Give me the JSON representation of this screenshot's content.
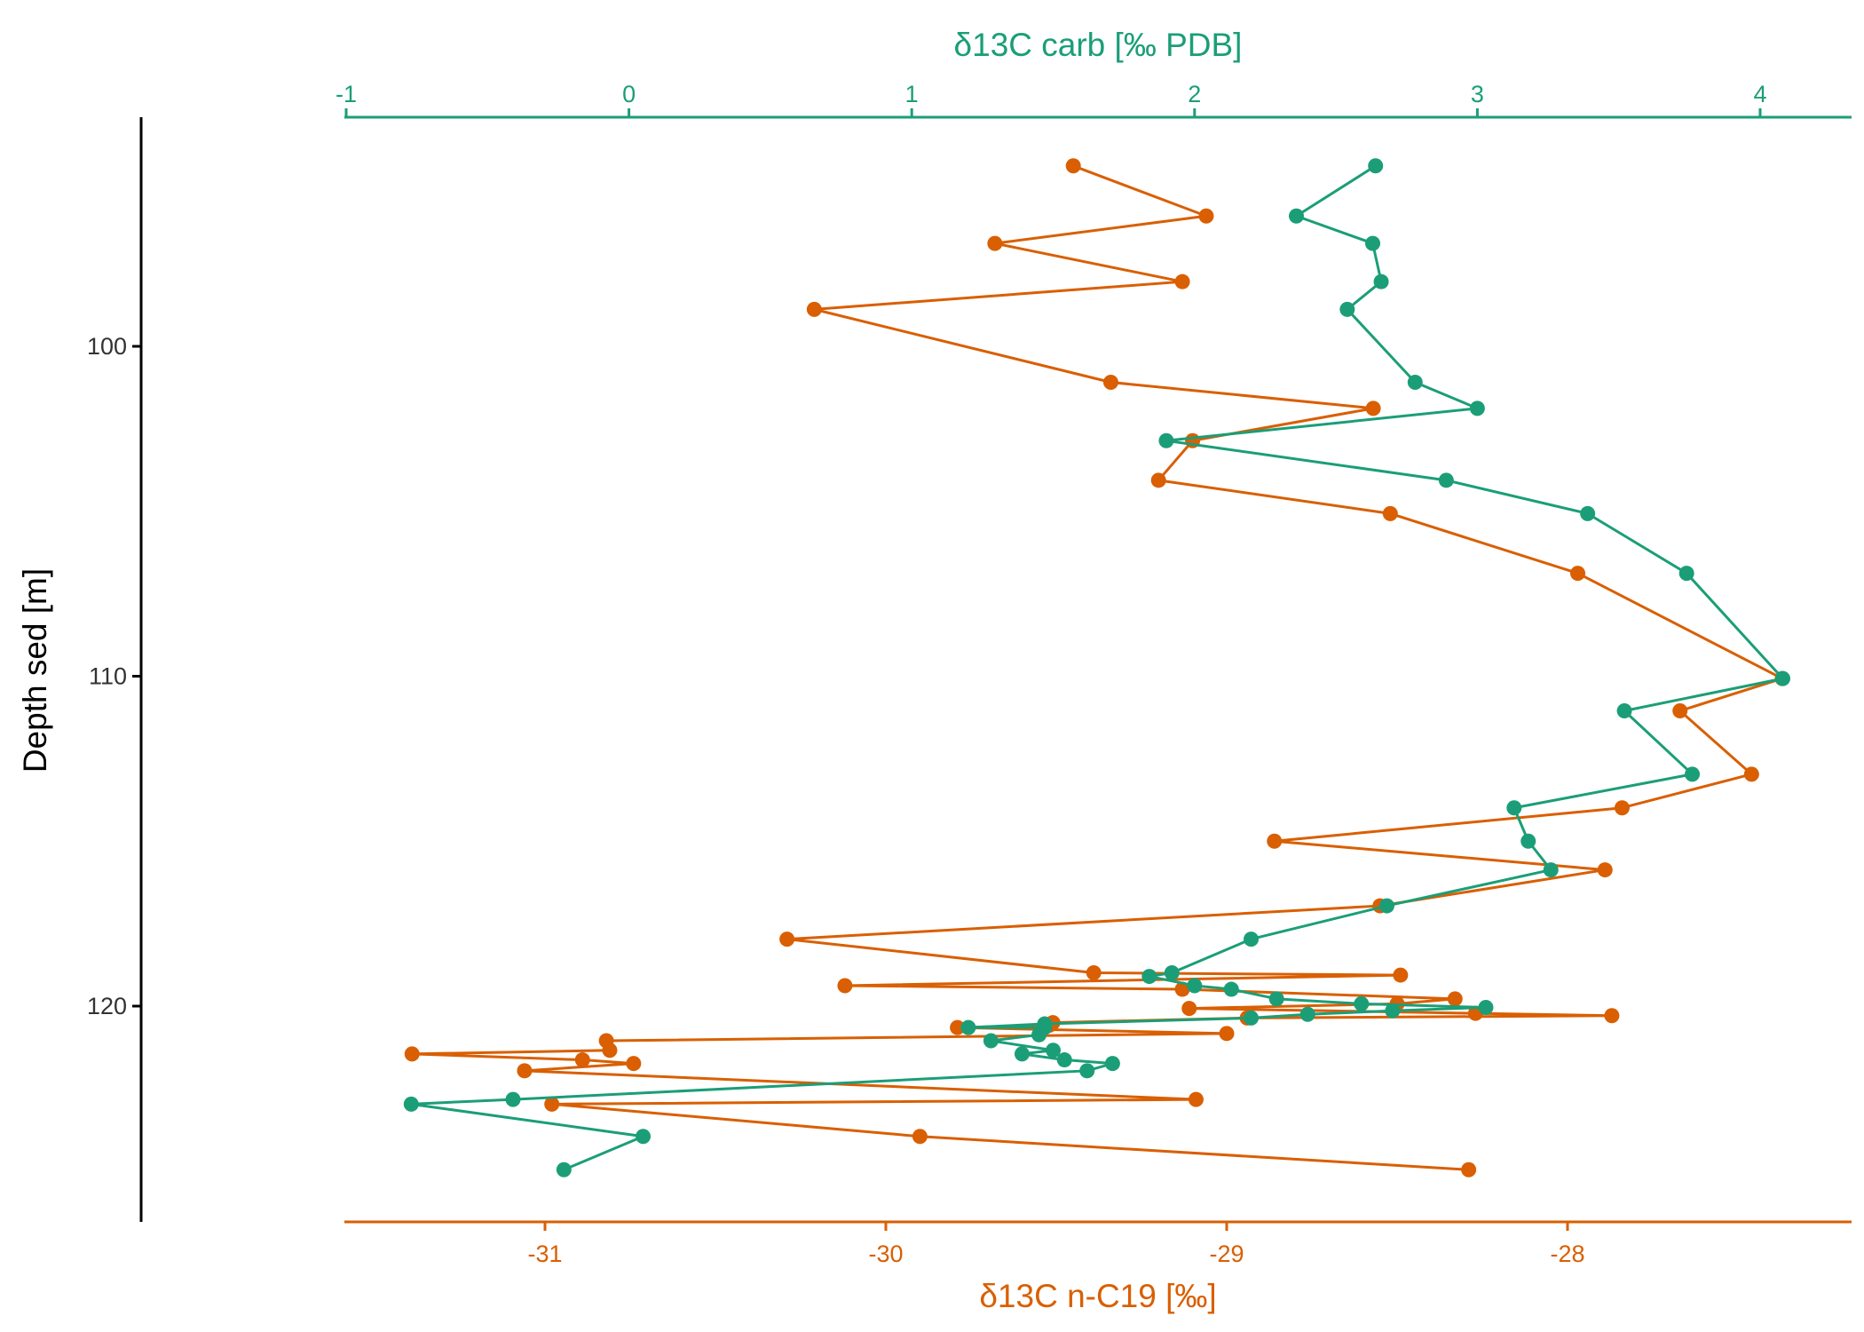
{
  "chart_data": {
    "type": "line",
    "colors": {
      "carb": "#1b9e77",
      "nc19": "#d95f02",
      "axis": "#000000",
      "tick_text": "#333333"
    },
    "ylabel": "Depth sed [m]",
    "yticks": [
      100,
      110,
      120
    ],
    "ylim": [
      93.1,
      126.6
    ],
    "y_reversed": true,
    "grid": false,
    "x_top": {
      "label": "δ13C carb [‰ PDB]",
      "ticks": [
        -1,
        0,
        1,
        2,
        3,
        4
      ],
      "xlim": [
        -1.01,
        4.32
      ]
    },
    "x_bottom": {
      "label": "δ13C n-C19 [‰]",
      "ticks": [
        -31,
        -30,
        -29,
        -28
      ],
      "xlim": [
        -31.6,
        -27.2
      ]
    },
    "series": [
      {
        "key": "nc19",
        "axis": "bottom",
        "color": "#d95f02",
        "points": [
          [
            -29.45,
            94.53
          ],
          [
            -29.06,
            96.05
          ],
          [
            -29.68,
            96.88
          ],
          [
            -29.13,
            98.04
          ],
          [
            -30.21,
            98.88
          ],
          [
            -29.34,
            101.09
          ],
          [
            -28.57,
            101.88
          ],
          [
            -29.1,
            102.86
          ],
          [
            -29.2,
            104.06
          ],
          [
            -28.52,
            105.07
          ],
          [
            -27.97,
            106.88
          ],
          [
            -27.37,
            110.07
          ],
          [
            -27.67,
            111.05
          ],
          [
            -27.46,
            112.97
          ],
          [
            -27.84,
            113.99
          ],
          [
            -28.86,
            115.0
          ],
          [
            -27.89,
            115.87
          ],
          [
            -28.55,
            116.96
          ],
          [
            -30.29,
            117.97
          ],
          [
            -29.39,
            118.99
          ],
          [
            -28.49,
            119.06
          ],
          [
            -30.12,
            119.38
          ],
          [
            -29.13,
            119.49
          ],
          [
            -28.33,
            119.78
          ],
          [
            -28.5,
            119.93
          ],
          [
            -29.11,
            120.07
          ],
          [
            -28.27,
            120.22
          ],
          [
            -27.87,
            120.29
          ],
          [
            -28.94,
            120.36
          ],
          [
            -29.51,
            120.5
          ],
          [
            -29.52,
            120.58
          ],
          [
            -29.79,
            120.65
          ],
          [
            -29.0,
            120.83
          ],
          [
            -30.82,
            121.05
          ],
          [
            -30.81,
            121.34
          ],
          [
            -31.39,
            121.45
          ],
          [
            -30.89,
            121.63
          ],
          [
            -30.74,
            121.74
          ],
          [
            -31.06,
            121.96
          ],
          [
            -29.09,
            122.83
          ],
          [
            -30.98,
            122.97
          ],
          [
            -29.9,
            123.95
          ],
          [
            -28.29,
            124.96
          ]
        ]
      },
      {
        "key": "carb",
        "axis": "top",
        "color": "#1b9e77",
        "points": [
          [
            2.64,
            94.53
          ],
          [
            2.36,
            96.05
          ],
          [
            2.63,
            96.88
          ],
          [
            2.66,
            98.04
          ],
          [
            2.54,
            98.88
          ],
          [
            2.78,
            101.09
          ],
          [
            3.0,
            101.88
          ],
          [
            1.9,
            102.86
          ],
          [
            2.89,
            104.06
          ],
          [
            3.39,
            105.07
          ],
          [
            3.74,
            106.88
          ],
          [
            4.08,
            110.07
          ],
          [
            3.52,
            111.05
          ],
          [
            3.76,
            112.97
          ],
          [
            3.13,
            113.99
          ],
          [
            3.18,
            115.0
          ],
          [
            3.26,
            115.87
          ],
          [
            2.68,
            116.96
          ],
          [
            2.2,
            117.97
          ],
          [
            1.92,
            118.99
          ],
          [
            1.84,
            119.1
          ],
          [
            2.0,
            119.38
          ],
          [
            2.13,
            119.49
          ],
          [
            2.29,
            119.78
          ],
          [
            2.59,
            119.93
          ],
          [
            3.03,
            120.04
          ],
          [
            2.7,
            120.14
          ],
          [
            2.4,
            120.25
          ],
          [
            2.2,
            120.36
          ],
          [
            1.47,
            120.54
          ],
          [
            1.2,
            120.65
          ],
          [
            1.47,
            120.65
          ],
          [
            1.45,
            120.87
          ],
          [
            1.28,
            121.05
          ],
          [
            1.5,
            121.34
          ],
          [
            1.39,
            121.45
          ],
          [
            1.54,
            121.63
          ],
          [
            1.71,
            121.74
          ],
          [
            1.62,
            121.96
          ],
          [
            -0.41,
            122.83
          ],
          [
            -0.77,
            122.97
          ],
          [
            0.05,
            123.95
          ],
          [
            -0.23,
            124.96
          ]
        ]
      }
    ]
  }
}
